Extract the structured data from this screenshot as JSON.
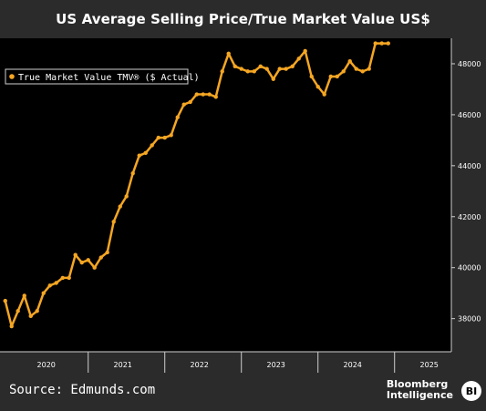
{
  "header": {
    "title": "US Average Selling Price/True Market Value US$"
  },
  "footer": {
    "source": "Source: Edmunds.com",
    "logo_line1": "Bloomberg",
    "logo_line2": "Intelligence",
    "badge": "BI"
  },
  "chart_data": {
    "type": "line",
    "title": "US Average Selling Price/True Market Value US$",
    "xlabel": "",
    "ylabel": "",
    "x_tick_labels": [
      "2020",
      "2021",
      "2022",
      "2023",
      "2024",
      "2025"
    ],
    "y_ticks": [
      38000,
      40000,
      42000,
      44000,
      46000,
      48000
    ],
    "y_tick_labels": [
      "38000",
      "40000",
      "42000",
      "44000",
      "46000",
      "48000"
    ],
    "ylim": [
      36700,
      49000
    ],
    "xlim": [
      2019.92,
      2025.67
    ],
    "grid": false,
    "legend_position": "top-left",
    "colors": {
      "line": "#f5a623",
      "background": "#000000",
      "frame": "#2b2b2b",
      "text": "#ffffff"
    },
    "series": [
      {
        "name": "True Market Value TMV® ($ Actual)",
        "x": [
          2019.917,
          2020.0,
          2020.083,
          2020.167,
          2020.25,
          2020.333,
          2020.417,
          2020.5,
          2020.583,
          2020.667,
          2020.75,
          2020.833,
          2020.917,
          2021.0,
          2021.083,
          2021.167,
          2021.25,
          2021.333,
          2021.417,
          2021.5,
          2021.583,
          2021.667,
          2021.75,
          2021.833,
          2021.917,
          2022.0,
          2022.083,
          2022.167,
          2022.25,
          2022.333,
          2022.417,
          2022.5,
          2022.583,
          2022.667,
          2022.75,
          2022.833,
          2022.917,
          2023.0,
          2023.083,
          2023.167,
          2023.25,
          2023.333,
          2023.417,
          2023.5,
          2023.583,
          2023.667,
          2023.75,
          2023.833,
          2023.917,
          2024.0,
          2024.083,
          2024.167,
          2024.25,
          2024.333,
          2024.417,
          2024.5,
          2024.583,
          2024.667,
          2024.75,
          2024.833,
          2024.917
        ],
        "y": [
          38700,
          37700,
          38300,
          38900,
          38100,
          38300,
          39000,
          39300,
          39400,
          39600,
          39600,
          40500,
          40200,
          40300,
          40000,
          40400,
          40600,
          41800,
          42400,
          42800,
          43700,
          44400,
          44500,
          44800,
          45100,
          45100,
          45200,
          45900,
          46400,
          46500,
          46800,
          46800,
          46800,
          46700,
          47700,
          48400,
          47900,
          47800,
          47700,
          47700,
          47900,
          47800,
          47400,
          47800,
          47800,
          47900,
          48200,
          48500,
          47500,
          47100,
          46800,
          47500,
          47500,
          47700,
          48100,
          47800,
          47700,
          47800,
          48800,
          48800,
          48800
        ]
      }
    ]
  }
}
